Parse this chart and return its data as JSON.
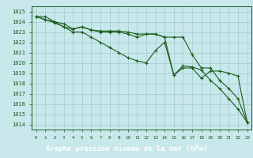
{
  "title": "Graphe pression niveau de la mer (hPa)",
  "x_labels": [
    "0",
    "1",
    "2",
    "3",
    "4",
    "5",
    "6",
    "7",
    "8",
    "9",
    "10",
    "11",
    "12",
    "13",
    "14",
    "15",
    "16",
    "17",
    "18",
    "19",
    "20",
    "21",
    "22",
    "23"
  ],
  "ylim": [
    1013.5,
    1025.5
  ],
  "yticks": [
    1014,
    1015,
    1016,
    1017,
    1018,
    1019,
    1020,
    1021,
    1022,
    1023,
    1024,
    1025
  ],
  "background_color": "#c8e8ec",
  "grid_color": "#a0ccd0",
  "line_color": "#1a5c1a",
  "xlabel_bg": "#2a6e2a",
  "xlabel_fg": "#ffffff",
  "tick_color": "#1a5c1a",
  "series": [
    [
      1024.5,
      1024.5,
      1024.0,
      1023.8,
      1023.3,
      1023.5,
      1023.2,
      1023.1,
      1023.1,
      1023.1,
      1023.0,
      1022.8,
      1022.8,
      1022.8,
      1022.5,
      1018.8,
      1019.7,
      1019.6,
      1019.3,
      1018.3,
      1017.5,
      1016.5,
      1015.5,
      1014.2
    ],
    [
      1024.5,
      1024.2,
      1024.0,
      1023.5,
      1023.3,
      1023.5,
      1023.2,
      1023.0,
      1023.0,
      1023.0,
      1022.8,
      1022.5,
      1022.8,
      1022.8,
      1022.5,
      1022.5,
      1022.5,
      1020.8,
      1019.5,
      1019.5,
      1018.3,
      1017.5,
      1016.5,
      1014.2
    ],
    [
      1024.5,
      1024.2,
      1023.9,
      1023.5,
      1023.0,
      1023.0,
      1022.5,
      1022.0,
      1021.5,
      1021.0,
      1020.5,
      1020.2,
      1020.0,
      1021.2,
      1022.0,
      1018.8,
      1019.5,
      1019.5,
      1018.5,
      1019.2,
      1019.2,
      1019.0,
      1018.7,
      1014.2
    ]
  ]
}
